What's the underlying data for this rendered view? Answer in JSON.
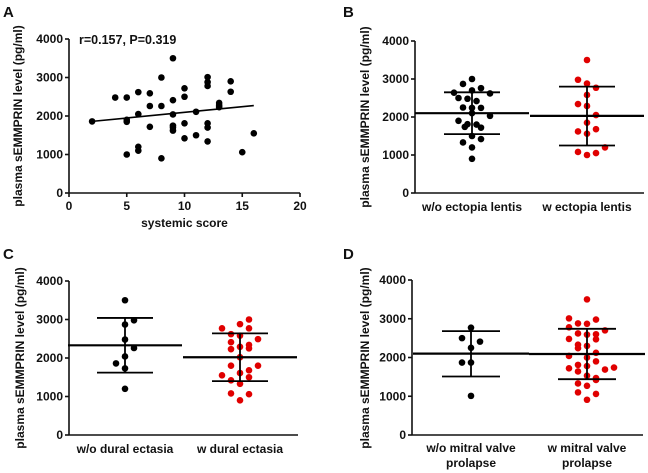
{
  "chart_data": [
    {
      "panel": "A",
      "type": "scatter",
      "title": "",
      "annotation": "r=0.157, P=0.319",
      "xlabel": "systemic score",
      "ylabel": "plasma sEMMPRIN level (pg/ml)",
      "xlim": [
        0,
        20
      ],
      "ylim": [
        0,
        4000
      ],
      "xticks": [
        0,
        5,
        10,
        15,
        20
      ],
      "yticks": [
        0,
        1000,
        2000,
        3000,
        4000
      ],
      "regression_line": {
        "x": [
          2,
          16
        ],
        "y": [
          1860,
          2270
        ]
      },
      "points": [
        {
          "x": 2,
          "y": 1860
        },
        {
          "x": 4,
          "y": 2480
        },
        {
          "x": 5,
          "y": 2480
        },
        {
          "x": 5,
          "y": 1900
        },
        {
          "x": 5,
          "y": 1850
        },
        {
          "x": 5,
          "y": 1000
        },
        {
          "x": 6,
          "y": 2620
        },
        {
          "x": 6,
          "y": 2050
        },
        {
          "x": 6,
          "y": 1200
        },
        {
          "x": 6,
          "y": 1100
        },
        {
          "x": 7,
          "y": 2590
        },
        {
          "x": 7,
          "y": 2260
        },
        {
          "x": 7,
          "y": 1720
        },
        {
          "x": 8,
          "y": 3000
        },
        {
          "x": 8,
          "y": 2260
        },
        {
          "x": 8,
          "y": 900
        },
        {
          "x": 9,
          "y": 3500
        },
        {
          "x": 9,
          "y": 2410
        },
        {
          "x": 9,
          "y": 2040
        },
        {
          "x": 9,
          "y": 1750
        },
        {
          "x": 9,
          "y": 1700
        },
        {
          "x": 9,
          "y": 1620
        },
        {
          "x": 10,
          "y": 2720
        },
        {
          "x": 10,
          "y": 2500
        },
        {
          "x": 10,
          "y": 1810
        },
        {
          "x": 10,
          "y": 1420
        },
        {
          "x": 11,
          "y": 2110
        },
        {
          "x": 11,
          "y": 1500
        },
        {
          "x": 12,
          "y": 3010
        },
        {
          "x": 12,
          "y": 2880
        },
        {
          "x": 12,
          "y": 2780
        },
        {
          "x": 12,
          "y": 1810
        },
        {
          "x": 12,
          "y": 1700
        },
        {
          "x": 12,
          "y": 1340
        },
        {
          "x": 13,
          "y": 2340
        },
        {
          "x": 13,
          "y": 2280
        },
        {
          "x": 13,
          "y": 2230
        },
        {
          "x": 14,
          "y": 2900
        },
        {
          "x": 14,
          "y": 2630
        },
        {
          "x": 15,
          "y": 1060
        },
        {
          "x": 16,
          "y": 1550
        }
      ]
    },
    {
      "panel": "B",
      "type": "scatter",
      "subtype": "dot-plot with mean ± SD",
      "ylabel": "plasma sEMMPRIN level (pg/ml)",
      "ylim": [
        0,
        4000
      ],
      "yticks": [
        0,
        1000,
        2000,
        3000,
        4000
      ],
      "categories": [
        "w/o ectopia lentis",
        "w ectopia lentis"
      ],
      "series": [
        {
          "name": "w/o ectopia lentis",
          "color": "#000000",
          "mean": 2100,
          "sd_low": 1550,
          "sd_high": 2650,
          "points": [
            {
              "y": 3000,
              "j": 0
            },
            {
              "y": 2870,
              "j": -1
            },
            {
              "y": 2760,
              "j": 1
            },
            {
              "y": 2640,
              "j": -2
            },
            {
              "y": 2700,
              "j": 0
            },
            {
              "y": 2620,
              "j": 2
            },
            {
              "y": 2500,
              "j": -1.5
            },
            {
              "y": 2480,
              "j": -0.5
            },
            {
              "y": 2420,
              "j": 0.5
            },
            {
              "y": 2250,
              "j": -1
            },
            {
              "y": 2240,
              "j": 0
            },
            {
              "y": 2240,
              "j": 1
            },
            {
              "y": 2030,
              "j": 2
            },
            {
              "y": 2100,
              "j": 0
            },
            {
              "y": 1900,
              "j": -1.5
            },
            {
              "y": 1810,
              "j": -0.5
            },
            {
              "y": 1800,
              "j": 0.5
            },
            {
              "y": 1740,
              "j": -0.8
            },
            {
              "y": 1720,
              "j": 1
            },
            {
              "y": 1500,
              "j": 0
            },
            {
              "y": 1420,
              "j": 1
            },
            {
              "y": 1330,
              "j": -1
            },
            {
              "y": 1200,
              "j": 0
            },
            {
              "y": 900,
              "j": 0
            }
          ]
        },
        {
          "name": "w ectopia lentis",
          "color": "#e00000",
          "mean": 2030,
          "sd_low": 1250,
          "sd_high": 2800,
          "points": [
            {
              "y": 3500,
              "j": 0
            },
            {
              "y": 2980,
              "j": -1
            },
            {
              "y": 2880,
              "j": 0
            },
            {
              "y": 2770,
              "j": 1
            },
            {
              "y": 2580,
              "j": 0
            },
            {
              "y": 2340,
              "j": -1
            },
            {
              "y": 2290,
              "j": 0
            },
            {
              "y": 2050,
              "j": 1
            },
            {
              "y": 1850,
              "j": 0
            },
            {
              "y": 1680,
              "j": 1
            },
            {
              "y": 1620,
              "j": -1
            },
            {
              "y": 1560,
              "j": 0
            },
            {
              "y": 1200,
              "j": 2
            },
            {
              "y": 1080,
              "j": -1
            },
            {
              "y": 1000,
              "j": 0
            },
            {
              "y": 1050,
              "j": 1
            }
          ]
        }
      ]
    },
    {
      "panel": "C",
      "type": "scatter",
      "subtype": "dot-plot with mean ± SD",
      "ylabel": "plasma sEMMPRIN level (pg/ml)",
      "ylim": [
        0,
        4000
      ],
      "yticks": [
        0,
        1000,
        2000,
        3000,
        4000
      ],
      "categories": [
        "w/o dural ectasia",
        "w dural ectasia"
      ],
      "series": [
        {
          "name": "w/o dural ectasia",
          "color": "#000000",
          "mean": 2330,
          "sd_low": 1620,
          "sd_high": 3040,
          "points": [
            {
              "y": 3500,
              "j": 0
            },
            {
              "y": 2980,
              "j": 1
            },
            {
              "y": 2870,
              "j": 0
            },
            {
              "y": 2480,
              "j": 0
            },
            {
              "y": 2260,
              "j": 1
            },
            {
              "y": 2040,
              "j": 0
            },
            {
              "y": 1860,
              "j": -1
            },
            {
              "y": 1730,
              "j": 0
            },
            {
              "y": 1200,
              "j": 0
            }
          ]
        },
        {
          "name": "w dural ectasia",
          "color": "#e00000",
          "mean": 2020,
          "sd_low": 1400,
          "sd_high": 2640,
          "points": [
            {
              "y": 3000,
              "j": 1
            },
            {
              "y": 2880,
              "j": 0
            },
            {
              "y": 2770,
              "j": -2
            },
            {
              "y": 2770,
              "j": 1
            },
            {
              "y": 2620,
              "j": -1
            },
            {
              "y": 2580,
              "j": 0
            },
            {
              "y": 2490,
              "j": 2
            },
            {
              "y": 2410,
              "j": -1
            },
            {
              "y": 2340,
              "j": 1
            },
            {
              "y": 2290,
              "j": 0
            },
            {
              "y": 2250,
              "j": 1
            },
            {
              "y": 2230,
              "j": -1
            },
            {
              "y": 2020,
              "j": 0
            },
            {
              "y": 1800,
              "j": -1
            },
            {
              "y": 1800,
              "j": 2
            },
            {
              "y": 1680,
              "j": 1
            },
            {
              "y": 1610,
              "j": 0
            },
            {
              "y": 1550,
              "j": -2
            },
            {
              "y": 1500,
              "j": 1
            },
            {
              "y": 1420,
              "j": -1
            },
            {
              "y": 1330,
              "j": 0
            },
            {
              "y": 1080,
              "j": -1
            },
            {
              "y": 1060,
              "j": 1
            },
            {
              "y": 900,
              "j": 0
            }
          ]
        }
      ]
    },
    {
      "panel": "D",
      "type": "scatter",
      "subtype": "dot-plot with mean ± SD",
      "ylabel": "plasma sEMMPRIN level (pg/ml)",
      "ylim": [
        0,
        4000
      ],
      "yticks": [
        0,
        1000,
        2000,
        3000,
        4000
      ],
      "categories": [
        "w/o mitral valve prolapse",
        "w mitral valve prolapse"
      ],
      "category_lines": [
        [
          "w/o mitral valve",
          "prolapse"
        ],
        [
          "w mitral valve",
          "prolapse"
        ]
      ],
      "series": [
        {
          "name": "w/o mitral valve prolapse",
          "color": "#000000",
          "mean": 2100,
          "sd_low": 1510,
          "sd_high": 2680,
          "points": [
            {
              "y": 2770,
              "j": 0
            },
            {
              "y": 2500,
              "j": -1
            },
            {
              "y": 2410,
              "j": 1
            },
            {
              "y": 2250,
              "j": 0
            },
            {
              "y": 1870,
              "j": -1
            },
            {
              "y": 1870,
              "j": 0
            },
            {
              "y": 1010,
              "j": 0
            }
          ]
        },
        {
          "name": "w mitral valve prolapse",
          "color": "#e00000",
          "mean": 2090,
          "sd_low": 1440,
          "sd_high": 2740,
          "points": [
            {
              "y": 3500,
              "j": 0
            },
            {
              "y": 3010,
              "j": -2
            },
            {
              "y": 2980,
              "j": 1
            },
            {
              "y": 2880,
              "j": -1
            },
            {
              "y": 2870,
              "j": 0
            },
            {
              "y": 2780,
              "j": -2
            },
            {
              "y": 2700,
              "j": 2
            },
            {
              "y": 2620,
              "j": -1
            },
            {
              "y": 2590,
              "j": 0
            },
            {
              "y": 2600,
              "j": 1
            },
            {
              "y": 2480,
              "j": -2
            },
            {
              "y": 2470,
              "j": 1
            },
            {
              "y": 2330,
              "j": -1
            },
            {
              "y": 2300,
              "j": 0
            },
            {
              "y": 2240,
              "j": -1
            },
            {
              "y": 2120,
              "j": 1
            },
            {
              "y": 2040,
              "j": -2
            },
            {
              "y": 2000,
              "j": 0
            },
            {
              "y": 1900,
              "j": 1
            },
            {
              "y": 1810,
              "j": -1
            },
            {
              "y": 1780,
              "j": 0
            },
            {
              "y": 1720,
              "j": -2
            },
            {
              "y": 1690,
              "j": 2
            },
            {
              "y": 1740,
              "j": 3
            },
            {
              "y": 1640,
              "j": -1
            },
            {
              "y": 1530,
              "j": 0
            },
            {
              "y": 1470,
              "j": 1
            },
            {
              "y": 1420,
              "j": 1
            },
            {
              "y": 1330,
              "j": -1
            },
            {
              "y": 1270,
              "j": 0
            },
            {
              "y": 1100,
              "j": -1
            },
            {
              "y": 1060,
              "j": 1
            },
            {
              "y": 910,
              "j": 0
            }
          ]
        }
      ]
    }
  ]
}
